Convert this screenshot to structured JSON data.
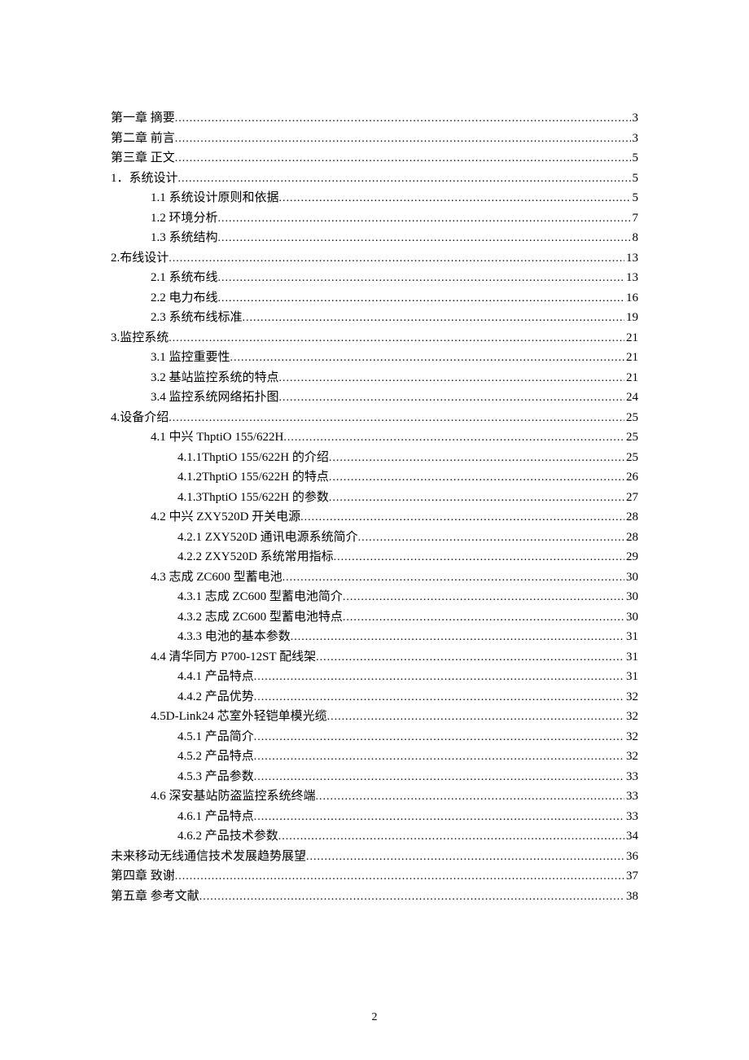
{
  "page_number": "2",
  "toc": [
    {
      "level": 0,
      "title": "第一章  摘要",
      "page": "3"
    },
    {
      "level": 0,
      "title": "第二章  前言",
      "page": "3"
    },
    {
      "level": 0,
      "title": "第三章  正文",
      "page": "5"
    },
    {
      "level": 0,
      "title": "1．系统设计",
      "page": "5"
    },
    {
      "level": 1,
      "title": "1.1 系统设计原则和依据",
      "page": "5"
    },
    {
      "level": 1,
      "title": "1.2 环境分析",
      "page": "7"
    },
    {
      "level": 1,
      "title": "1.3 系统结构",
      "page": "8"
    },
    {
      "level": 0,
      "title": "2.布线设计",
      "page": "13"
    },
    {
      "level": 1,
      "title": "2.1 系统布线",
      "page": "13"
    },
    {
      "level": 1,
      "title": "2.2 电力布线",
      "page": "16"
    },
    {
      "level": 1,
      "title": "2.3 系统布线标准",
      "page": "19"
    },
    {
      "level": 0,
      "title": "3.监控系统",
      "page": "21"
    },
    {
      "level": 1,
      "title": "3.1 监控重要性",
      "page": "21"
    },
    {
      "level": 1,
      "title": "3.2 基站监控系统的特点",
      "page": "21"
    },
    {
      "level": 1,
      "title": "3.4 监控系统网络拓扑图",
      "page": "24"
    },
    {
      "level": 0,
      "title": "4.设备介绍",
      "page": "25"
    },
    {
      "level": 1,
      "title": "4.1 中兴 ThptiO 155/622H ",
      "page": "25"
    },
    {
      "level": 2,
      "title": "4.1.1ThptiO 155/622H 的介绍 ",
      "page": "25"
    },
    {
      "level": 2,
      "title": "4.1.2ThptiO 155/622H 的特点 ",
      "page": "26"
    },
    {
      "level": 2,
      "title": "4.1.3ThptiO 155/622H 的参数 ",
      "page": "27"
    },
    {
      "level": 1,
      "title": "4.2 中兴 ZXY520D 开关电源",
      "page": "28"
    },
    {
      "level": 2,
      "title": "4.2.1 ZXY520D 通讯电源系统简介",
      "page": "28"
    },
    {
      "level": 2,
      "title": "4.2.2 ZXY520D 系统常用指标",
      "page": "29"
    },
    {
      "level": 1,
      "title": "4.3 志成 ZC600 型蓄电池",
      "page": "30"
    },
    {
      "level": 2,
      "title": "4.3.1 志成 ZC600 型蓄电池简介",
      "page": "30"
    },
    {
      "level": 2,
      "title": "4.3.2 志成 ZC600 型蓄电池特点",
      "page": "30"
    },
    {
      "level": 2,
      "title": "4.3.3 电池的基本参数",
      "page": "31"
    },
    {
      "level": 1,
      "title": "4.4  清华同方 P700-12ST 配线架 ",
      "page": "31"
    },
    {
      "level": 2,
      "title": "4.4.1 产品特点",
      "page": "31"
    },
    {
      "level": 2,
      "title": "4.4.2 产品优势",
      "page": "32"
    },
    {
      "level": 1,
      "title": "4.5D-Link24 芯室外轻铠单模光缆",
      "page": "32"
    },
    {
      "level": 2,
      "title": "4.5.1 产品简介",
      "page": "32"
    },
    {
      "level": 2,
      "title": "4.5.2 产品特点",
      "page": "32"
    },
    {
      "level": 2,
      "title": "4.5.3 产品参数",
      "page": "33"
    },
    {
      "level": 1,
      "title": "4.6 深安基站防盗监控系统终端",
      "page": "33"
    },
    {
      "level": 2,
      "title": "4.6.1 产品特点",
      "page": "33"
    },
    {
      "level": 2,
      "title": "4.6.2 产品技术参数",
      "page": "34"
    },
    {
      "level": 0,
      "title": "未来移动无线通信技术发展趋势展望",
      "page": "36"
    },
    {
      "level": 0,
      "title": "第四章  致谢",
      "page": "37"
    },
    {
      "level": 0,
      "title": "第五章  参考文献",
      "page": "38"
    }
  ]
}
